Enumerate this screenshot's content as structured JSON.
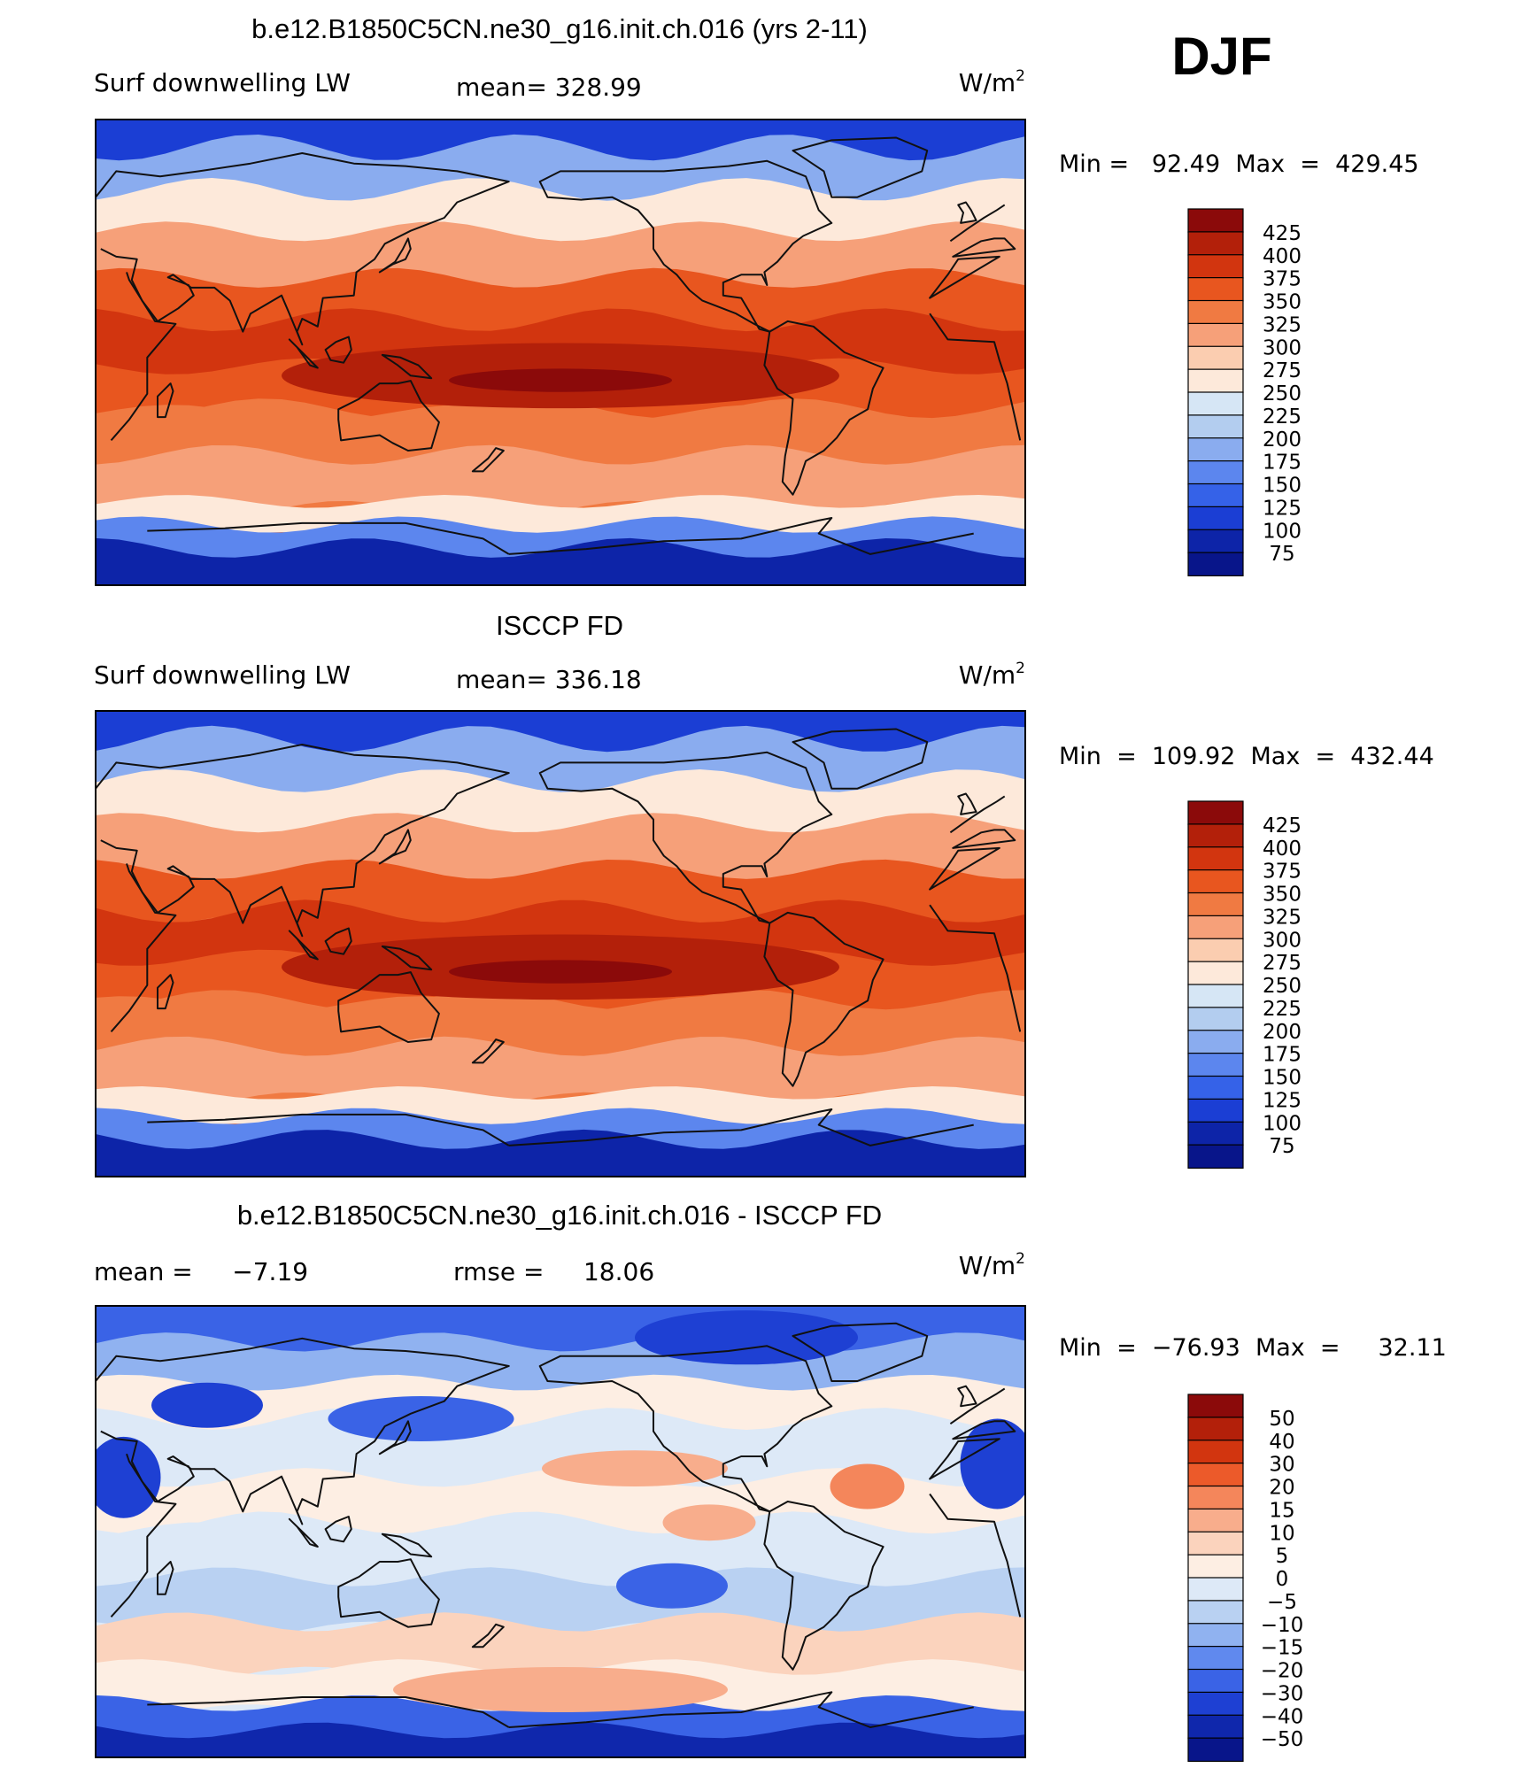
{
  "season": "DJF",
  "land_color": "#111111",
  "panels": [
    {
      "title": "b.e12.B1850C5CN.ne30_g16.init.ch.016 (yrs 2-11)",
      "left_label": "Surf downwelling LW",
      "center_label": "mean=  328.99",
      "units": "W/m",
      "units_sup": "2",
      "minmax": "Min =   92.49  Max  =  429.45",
      "colorbar_labels": [
        "425",
        "400",
        "375",
        "350",
        "325",
        "300",
        "275",
        "250",
        "225",
        "200",
        "175",
        "150",
        "125",
        "100",
        "75"
      ],
      "colorbar_colors": [
        "#8b0a0a",
        "#b3200a",
        "#d2350f",
        "#e8561f",
        "#f07a42",
        "#f6a079",
        "#fbcdb0",
        "#fde9da",
        "#d6e6f5",
        "#b3cdef",
        "#8aacef",
        "#5c86ee",
        "#3562e8",
        "#1b3ed4",
        "#0d24a8",
        "#08158a"
      ],
      "colormap": "longwave",
      "field": "model"
    },
    {
      "title": "ISCCP FD",
      "left_label": "Surf downwelling LW",
      "center_label": "mean=  336.18",
      "units": "W/m",
      "units_sup": "2",
      "minmax": "Min  =  109.92  Max  =  432.44",
      "colorbar_labels": [
        "425",
        "400",
        "375",
        "350",
        "325",
        "300",
        "275",
        "250",
        "225",
        "200",
        "175",
        "150",
        "125",
        "100",
        "75"
      ],
      "colorbar_colors": [
        "#8b0a0a",
        "#b3200a",
        "#d2350f",
        "#e8561f",
        "#f07a42",
        "#f6a079",
        "#fbcdb0",
        "#fde9da",
        "#d6e6f5",
        "#b3cdef",
        "#8aacef",
        "#5c86ee",
        "#3562e8",
        "#1b3ed4",
        "#0d24a8",
        "#08158a"
      ],
      "colormap": "longwave",
      "field": "obs"
    },
    {
      "title": "b.e12.B1850C5CN.ne30_g16.init.ch.016 - ISCCP FD",
      "left_label": "mean =     −7.19",
      "center_label": "rmse =     18.06",
      "units": "W/m",
      "units_sup": "2",
      "minmax": "Min  =  −76.93  Max  =     32.11",
      "colorbar_labels": [
        "50",
        "40",
        "30",
        "20",
        "15",
        "10",
        "5",
        "0",
        "−5",
        "−10",
        "−15",
        "−20",
        "−30",
        "−40",
        "−50"
      ],
      "colorbar_colors": [
        "#8b0a0a",
        "#b3200a",
        "#d2350f",
        "#ec5a2a",
        "#f4865b",
        "#f8ad8c",
        "#fbd3bd",
        "#fdeee3",
        "#dde9f7",
        "#b9d1f2",
        "#90b2f0",
        "#6089ee",
        "#3a63e6",
        "#1e40d3",
        "#0f27ac",
        "#08158a"
      ],
      "colormap": "difference",
      "field": "diff"
    }
  ]
}
